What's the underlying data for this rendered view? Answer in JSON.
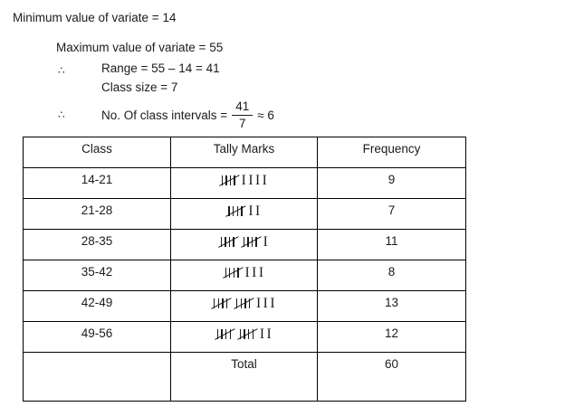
{
  "solution": {
    "min_line": "Minimum value of variate = 14",
    "max_line": "Maximum value of variate = 55",
    "therefore_symbol": "∴",
    "range_line": "Range = 55 – 14 = 41",
    "class_size_line": "Class size = 7",
    "intervals_prefix": "No. Of class intervals =",
    "fraction": {
      "numerator": "41",
      "denominator": "7"
    },
    "intervals_suffix": "≈ 6"
  },
  "table": {
    "headers": {
      "class": "Class",
      "tally": "Tally Marks",
      "frequency": "Frequency"
    },
    "rows": [
      {
        "class": "14-21",
        "tally": {
          "fives": 1,
          "ones": 4
        },
        "frequency": "9"
      },
      {
        "class": "21-28",
        "tally": {
          "fives": 1,
          "ones": 2
        },
        "frequency": "7"
      },
      {
        "class": "28-35",
        "tally": {
          "fives": 2,
          "ones": 1
        },
        "frequency": "11"
      },
      {
        "class": "35-42",
        "tally": {
          "fives": 1,
          "ones": 3
        },
        "frequency": "8"
      },
      {
        "class": "42-49",
        "tally": {
          "fives": 2,
          "ones": 3
        },
        "frequency": "13"
      },
      {
        "class": "49-56",
        "tally": {
          "fives": 2,
          "ones": 2
        },
        "frequency": "12"
      }
    ],
    "total_row": {
      "class": "",
      "label": "Total",
      "value": "60"
    }
  },
  "colors": {
    "text": "#1b1b1b",
    "border": "#000000",
    "background": "#ffffff"
  }
}
